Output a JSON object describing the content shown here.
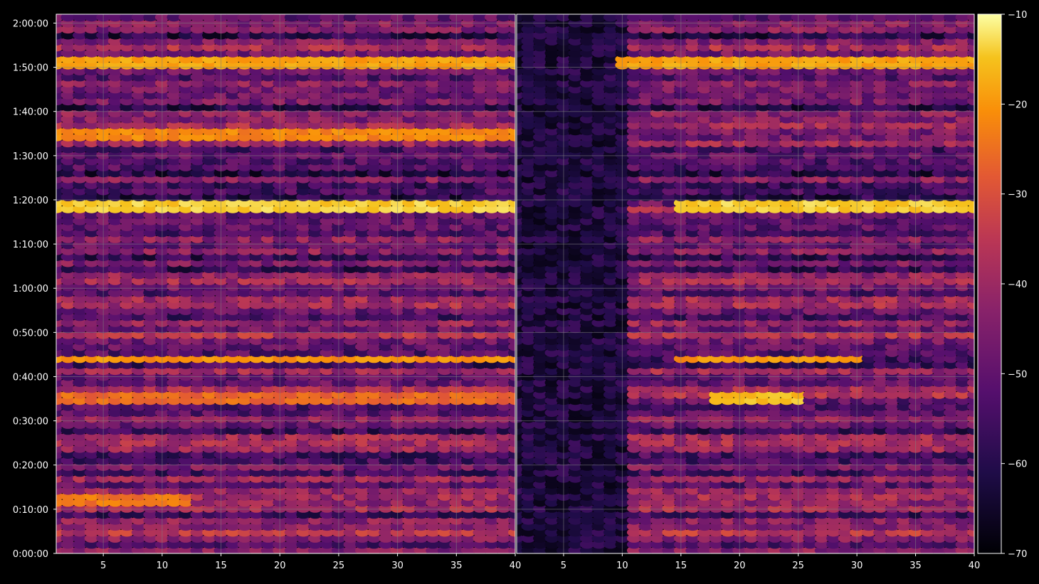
{
  "chart_data": [
    {
      "type": "heatmap",
      "panel": "left",
      "xlim": [
        1,
        40
      ],
      "ylim_seconds": [
        0,
        7320
      ],
      "x_ticks": [
        "5",
        "10",
        "15",
        "20",
        "25",
        "30",
        "35",
        "40"
      ],
      "y_ticks": [
        "0:00:00",
        "0:10:00",
        "0:20:00",
        "0:30:00",
        "0:40:00",
        "0:50:00",
        "1:00:00",
        "1:10:00",
        "1:20:00",
        "1:30:00",
        "1:40:00",
        "1:50:00",
        "2:00:00"
      ],
      "grid": true,
      "hot_bands": [
        {
          "time": "1:51:00",
          "x": [
            1,
            40
          ],
          "value": -22
        },
        {
          "time": "1:19:00",
          "x": [
            1,
            40
          ],
          "value": -16
        },
        {
          "time": "1:35:00",
          "x": [
            1,
            40
          ],
          "value": -26
        },
        {
          "time": "0:44:00",
          "x": [
            1,
            40
          ],
          "value": -24
        },
        {
          "time": "0:35:00",
          "x": [
            1,
            40
          ],
          "value": -30
        },
        {
          "time": "0:12:00",
          "x": [
            1,
            12
          ],
          "value": -28
        }
      ]
    },
    {
      "type": "heatmap",
      "panel": "right",
      "xlim": [
        1,
        40
      ],
      "ylim_seconds": [
        0,
        7320
      ],
      "x_ticks": [
        "5",
        "10",
        "15",
        "20",
        "25",
        "30",
        "35",
        "40"
      ],
      "grid": true,
      "low_region": {
        "x": [
          1,
          10
        ],
        "value": -68
      },
      "hot_bands": [
        {
          "time": "1:51:00",
          "x": [
            10,
            40
          ],
          "value": -22
        },
        {
          "time": "1:19:00",
          "x": [
            15,
            40
          ],
          "value": -16
        },
        {
          "time": "0:44:00",
          "x": [
            15,
            30
          ],
          "value": -24
        },
        {
          "time": "0:35:00",
          "x": [
            18,
            25
          ],
          "value": -18
        }
      ]
    }
  ],
  "colorbar": {
    "colormap": "inferno",
    "range": [
      -70,
      -10
    ],
    "ticks": [
      "−10",
      "−20",
      "−30",
      "−40",
      "−50",
      "−60",
      "−70"
    ]
  },
  "colors": {
    "background": "#000000",
    "axis": "#ffffff",
    "grid": "#808080"
  }
}
